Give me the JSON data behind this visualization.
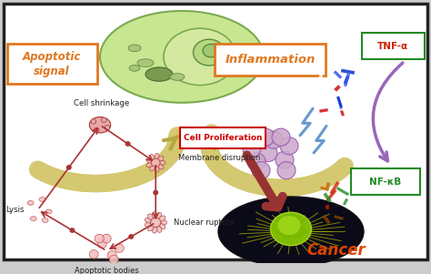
{
  "bg_color": "#ffffff",
  "fig_bg": "#cccccc",
  "labels": {
    "apoptotic_signal": "Apoptotic\nsignal",
    "inflammation": "Inflammation",
    "cell_shrinkage": "Cell shrinkage",
    "membrane_disruption": "Membrane disruption",
    "nuclear_rupture": "Nuclear rupture",
    "lysis": "Lysis",
    "apoptotic_bodies": "Apoptotic bodies",
    "cell_proliferation": "Cell Proliferation",
    "cancer": "Cancer",
    "tnf": "TNF-α",
    "nfkb": "NF-κB"
  },
  "colors": {
    "apoptotic_signal_box": "#e07820",
    "inflammation_box": "#e07820",
    "cell_proliferation_box": "#cc0000",
    "cancer_text": "#dd4400",
    "arrow_yellow": "#d4c870",
    "arrow_yellow_dark": "#b8a840",
    "arrow_dark_red": "#993333",
    "arrow_purple": "#9966bb",
    "cell_bg": "#c8e690",
    "cell_border": "#7aaa50",
    "tnf_box": "#228b22",
    "nfkb_box": "#228b22",
    "body_text": "#333333",
    "border": "#222222",
    "apop_fill": "#e8a8a8",
    "apop_edge": "#aa3333",
    "lightning": "#6699cc"
  }
}
